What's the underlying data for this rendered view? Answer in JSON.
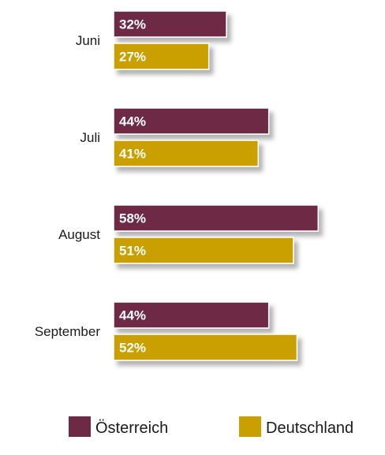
{
  "chart_data": {
    "type": "bar",
    "orientation": "horizontal",
    "categories": [
      "Juni",
      "Juli",
      "August",
      "September"
    ],
    "series": [
      {
        "name": "Österreich",
        "values": [
          32,
          44,
          58,
          44
        ],
        "color": "#6e2a45"
      },
      {
        "name": "Deutschland",
        "values": [
          27,
          41,
          51,
          52
        ],
        "color": "#c9a000"
      }
    ],
    "value_suffix": "%",
    "grid": false,
    "legend": "bottom"
  }
}
